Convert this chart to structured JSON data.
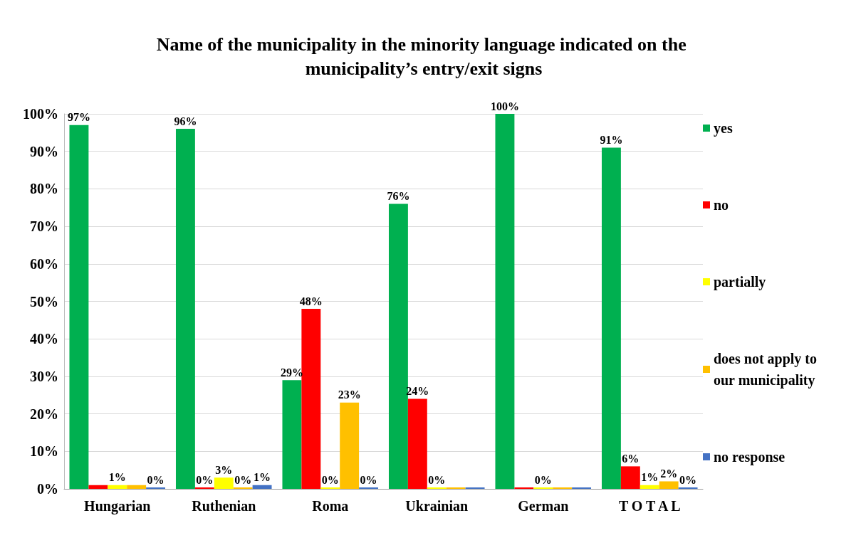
{
  "chart_data": {
    "type": "bar",
    "title": "Name of the municipality in the minority language indicated on the municipality’s entry/exit signs",
    "categories": [
      "Hungarian",
      "Ruthenian",
      "Roma",
      "Ukrainian",
      "German",
      "T O T A L"
    ],
    "series": [
      {
        "name": "yes",
        "color": "#00b050",
        "values": [
          97,
          96,
          29,
          76,
          100,
          91
        ],
        "value_labels": [
          "97%",
          "96%",
          "29%",
          "76%",
          "100%",
          "91%"
        ]
      },
      {
        "name": "no",
        "color": "#ff0000",
        "values": [
          1,
          0,
          48,
          24,
          0,
          6
        ],
        "value_labels": [
          null,
          "0%",
          "48%",
          "24%",
          null,
          "6%"
        ]
      },
      {
        "name": "partially",
        "color": "#ffff00",
        "values": [
          1,
          3,
          0,
          0,
          0,
          1
        ],
        "value_labels": [
          "1%",
          "3%",
          "0%",
          "0%",
          "0%",
          "1%"
        ]
      },
      {
        "name": "does not apply to our municipality",
        "color": "#ffc000",
        "values": [
          1,
          0,
          23,
          0,
          0,
          2
        ],
        "value_labels": [
          null,
          "0%",
          "23%",
          null,
          null,
          "2%"
        ]
      },
      {
        "name": "no response",
        "color": "#4472c4",
        "values": [
          0,
          1,
          0,
          0,
          0,
          0
        ],
        "value_labels": [
          "0%",
          "1%",
          "0%",
          null,
          null,
          "0%"
        ]
      }
    ],
    "ylim": [
      0,
      100
    ],
    "yticks": [
      {
        "value": 0,
        "label": "0%"
      },
      {
        "value": 10,
        "label": "10%"
      },
      {
        "value": 20,
        "label": "20%"
      },
      {
        "value": 30,
        "label": "30%"
      },
      {
        "value": 40,
        "label": "40%"
      },
      {
        "value": 50,
        "label": "50%"
      },
      {
        "value": 60,
        "label": "60%"
      },
      {
        "value": 70,
        "label": "70%"
      },
      {
        "value": 80,
        "label": "80%"
      },
      {
        "value": 90,
        "label": "90%"
      },
      {
        "value": 100,
        "label": "100%"
      }
    ],
    "grid": "y",
    "legend": "right"
  }
}
